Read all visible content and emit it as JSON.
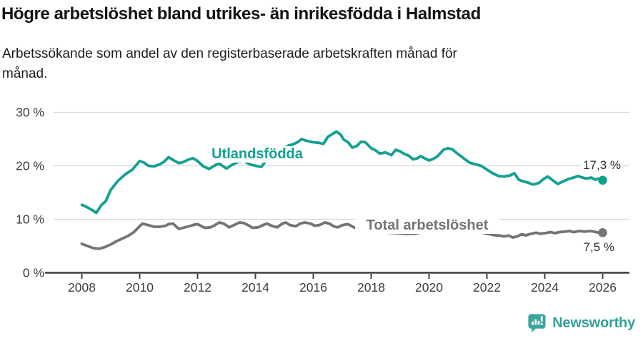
{
  "header": {
    "title": "Högre arbetslöshet bland utrikes- än inrikesfödda i Halmstad",
    "subtitle_lines": [
      "Arbetssökande som andel av den registerbaserade arbetskraften månad för",
      "månad."
    ]
  },
  "footer": {
    "brand": "Newsworthy",
    "brand_color": "#35a09a",
    "logo_icon": "bar-chart-speech-bubble-icon"
  },
  "chart_data": {
    "type": "line",
    "title": "Högre arbetslöshet bland utrikes- än inrikesfödda i Halmstad",
    "subtitle": "Arbetssökande som andel av den registerbaserade arbetskraften månad för månad.",
    "xlabel": "",
    "ylabel": "",
    "ylim": [
      0,
      30
    ],
    "xlim": [
      2007,
      2027
    ],
    "grid": "horizontal",
    "legend_position": "inline-labels",
    "grid_color": "#d7d7d7",
    "axis_color": "#3d3d3d",
    "axis_label_color": "#3c3c3c",
    "y_ticks": [
      {
        "value": 0,
        "label": "0 %"
      },
      {
        "value": 10,
        "label": "10 %"
      },
      {
        "value": 20,
        "label": "20 %"
      },
      {
        "value": 30,
        "label": "30 %"
      }
    ],
    "x_ticks": [
      {
        "value": 2008,
        "label": "2008"
      },
      {
        "value": 2010,
        "label": "2010"
      },
      {
        "value": 2012,
        "label": "2012"
      },
      {
        "value": 2014,
        "label": "2014"
      },
      {
        "value": 2016,
        "label": "2016"
      },
      {
        "value": 2018,
        "label": "2018"
      },
      {
        "value": 2020,
        "label": "2020"
      },
      {
        "value": 2022,
        "label": "2022"
      },
      {
        "value": 2024,
        "label": "2024"
      },
      {
        "value": 2026,
        "label": "2026"
      }
    ],
    "series": [
      {
        "name": "Utlandsfödda",
        "color": "#13A091",
        "end_label": "17,3 %",
        "end_value": 17.3,
        "points": [
          [
            2008.0,
            12.7
          ],
          [
            2008.17,
            12.3
          ],
          [
            2008.33,
            11.8
          ],
          [
            2008.5,
            11.2
          ],
          [
            2008.67,
            12.6
          ],
          [
            2008.83,
            13.4
          ],
          [
            2009.0,
            15.5
          ],
          [
            2009.25,
            17.2
          ],
          [
            2009.5,
            18.4
          ],
          [
            2009.75,
            19.3
          ],
          [
            2010.0,
            20.9
          ],
          [
            2010.15,
            20.6
          ],
          [
            2010.3,
            20.0
          ],
          [
            2010.5,
            19.9
          ],
          [
            2010.7,
            20.3
          ],
          [
            2010.85,
            20.8
          ],
          [
            2011.0,
            21.6
          ],
          [
            2011.15,
            21.1
          ],
          [
            2011.35,
            20.5
          ],
          [
            2011.5,
            20.7
          ],
          [
            2011.7,
            21.2
          ],
          [
            2011.85,
            21.4
          ],
          [
            2012.0,
            20.9
          ],
          [
            2012.2,
            19.9
          ],
          [
            2012.4,
            19.4
          ],
          [
            2012.6,
            20.1
          ],
          [
            2012.75,
            20.4
          ],
          [
            2013.0,
            19.5
          ],
          [
            2013.2,
            20.2
          ],
          [
            2013.4,
            20.7
          ],
          [
            2013.6,
            20.9
          ],
          [
            2013.8,
            20.3
          ],
          [
            2014.0,
            20.0
          ],
          [
            2014.2,
            19.8
          ],
          [
            2014.35,
            20.8
          ],
          [
            2014.5,
            22.0
          ],
          [
            2014.65,
            23.0
          ],
          [
            2014.8,
            23.4
          ],
          [
            2015.0,
            23.3
          ],
          [
            2015.15,
            23.8
          ],
          [
            2015.3,
            24.0
          ],
          [
            2015.45,
            24.4
          ],
          [
            2015.6,
            25.0
          ],
          [
            2015.75,
            24.7
          ],
          [
            2015.9,
            24.5
          ],
          [
            2016.0,
            24.4
          ],
          [
            2016.2,
            24.3
          ],
          [
            2016.35,
            24.1
          ],
          [
            2016.5,
            25.4
          ],
          [
            2016.65,
            25.9
          ],
          [
            2016.8,
            26.4
          ],
          [
            2016.95,
            25.8
          ],
          [
            2017.05,
            24.9
          ],
          [
            2017.2,
            24.4
          ],
          [
            2017.35,
            23.4
          ],
          [
            2017.5,
            23.7
          ],
          [
            2017.65,
            24.5
          ],
          [
            2017.8,
            24.4
          ],
          [
            2018.0,
            23.3
          ],
          [
            2018.15,
            22.9
          ],
          [
            2018.3,
            22.3
          ],
          [
            2018.5,
            22.5
          ],
          [
            2018.7,
            22.0
          ],
          [
            2018.85,
            23.0
          ],
          [
            2019.0,
            22.7
          ],
          [
            2019.15,
            22.2
          ],
          [
            2019.3,
            21.9
          ],
          [
            2019.45,
            21.2
          ],
          [
            2019.6,
            21.4
          ],
          [
            2019.7,
            21.8
          ],
          [
            2019.85,
            21.4
          ],
          [
            2020.0,
            21.0
          ],
          [
            2020.15,
            21.3
          ],
          [
            2020.3,
            21.8
          ],
          [
            2020.5,
            23.0
          ],
          [
            2020.65,
            23.3
          ],
          [
            2020.8,
            23.1
          ],
          [
            2021.0,
            22.2
          ],
          [
            2021.2,
            21.4
          ],
          [
            2021.4,
            20.6
          ],
          [
            2021.6,
            20.3
          ],
          [
            2021.8,
            20.0
          ],
          [
            2022.0,
            19.3
          ],
          [
            2022.2,
            18.6
          ],
          [
            2022.4,
            18.1
          ],
          [
            2022.6,
            18.0
          ],
          [
            2022.8,
            18.2
          ],
          [
            2022.95,
            18.6
          ],
          [
            2023.1,
            17.4
          ],
          [
            2023.25,
            17.1
          ],
          [
            2023.4,
            16.9
          ],
          [
            2023.6,
            16.5
          ],
          [
            2023.8,
            16.8
          ],
          [
            2023.95,
            17.5
          ],
          [
            2024.1,
            18.0
          ],
          [
            2024.25,
            17.4
          ],
          [
            2024.45,
            16.6
          ],
          [
            2024.6,
            17.0
          ],
          [
            2024.8,
            17.5
          ],
          [
            2025.0,
            17.8
          ],
          [
            2025.15,
            18.1
          ],
          [
            2025.3,
            17.8
          ],
          [
            2025.45,
            17.6
          ],
          [
            2025.6,
            17.8
          ],
          [
            2025.75,
            17.4
          ],
          [
            2025.85,
            17.6
          ],
          [
            2026.0,
            17.3
          ]
        ]
      },
      {
        "name": "Total arbetslöshet",
        "color": "#737379",
        "end_label": "7,5 %",
        "end_value": 7.5,
        "points": [
          [
            2008.0,
            5.4
          ],
          [
            2008.2,
            5.0
          ],
          [
            2008.4,
            4.6
          ],
          [
            2008.6,
            4.5
          ],
          [
            2008.8,
            4.8
          ],
          [
            2009.0,
            5.3
          ],
          [
            2009.2,
            5.9
          ],
          [
            2009.4,
            6.4
          ],
          [
            2009.6,
            6.9
          ],
          [
            2009.8,
            7.6
          ],
          [
            2010.0,
            8.7
          ],
          [
            2010.1,
            9.2
          ],
          [
            2010.3,
            8.9
          ],
          [
            2010.5,
            8.6
          ],
          [
            2010.7,
            8.6
          ],
          [
            2010.9,
            8.8
          ],
          [
            2011.0,
            9.1
          ],
          [
            2011.15,
            9.2
          ],
          [
            2011.35,
            8.2
          ],
          [
            2011.5,
            8.4
          ],
          [
            2011.7,
            8.7
          ],
          [
            2011.9,
            9.0
          ],
          [
            2012.0,
            9.1
          ],
          [
            2012.25,
            8.4
          ],
          [
            2012.45,
            8.5
          ],
          [
            2012.6,
            8.9
          ],
          [
            2012.75,
            9.4
          ],
          [
            2012.9,
            9.2
          ],
          [
            2013.1,
            8.5
          ],
          [
            2013.25,
            8.9
          ],
          [
            2013.45,
            9.4
          ],
          [
            2013.6,
            9.3
          ],
          [
            2013.75,
            8.9
          ],
          [
            2013.9,
            8.4
          ],
          [
            2014.1,
            8.5
          ],
          [
            2014.25,
            8.9
          ],
          [
            2014.4,
            9.2
          ],
          [
            2014.55,
            8.8
          ],
          [
            2014.75,
            8.5
          ],
          [
            2014.9,
            9.1
          ],
          [
            2015.05,
            9.4
          ],
          [
            2015.2,
            8.9
          ],
          [
            2015.4,
            8.7
          ],
          [
            2015.55,
            9.2
          ],
          [
            2015.7,
            9.4
          ],
          [
            2015.9,
            9.2
          ],
          [
            2016.05,
            8.8
          ],
          [
            2016.2,
            8.9
          ],
          [
            2016.4,
            9.4
          ],
          [
            2016.55,
            9.2
          ],
          [
            2016.7,
            8.7
          ],
          [
            2016.85,
            8.5
          ],
          [
            2017.0,
            8.9
          ],
          [
            2017.2,
            9.1
          ],
          [
            2017.4,
            8.5
          ],
          [
            2017.6,
            8.2
          ],
          [
            2017.8,
            8.0
          ],
          [
            2018.0,
            7.9
          ],
          [
            2018.3,
            7.7
          ],
          [
            2018.6,
            7.5
          ],
          [
            2018.9,
            7.4
          ],
          [
            2019.2,
            7.3
          ],
          [
            2019.5,
            7.3
          ],
          [
            2019.8,
            7.6
          ],
          [
            2020.0,
            8.2
          ],
          [
            2020.2,
            9.3
          ],
          [
            2020.4,
            9.9
          ],
          [
            2020.6,
            9.7
          ],
          [
            2020.8,
            9.4
          ],
          [
            2021.0,
            9.0
          ],
          [
            2021.3,
            8.4
          ],
          [
            2021.6,
            7.9
          ],
          [
            2021.9,
            7.4
          ],
          [
            2022.1,
            7.2
          ],
          [
            2022.3,
            7.0
          ],
          [
            2022.45,
            6.95
          ],
          [
            2022.6,
            6.8
          ],
          [
            2022.75,
            6.95
          ],
          [
            2022.9,
            6.6
          ],
          [
            2023.05,
            6.8
          ],
          [
            2023.2,
            7.2
          ],
          [
            2023.35,
            7.0
          ],
          [
            2023.5,
            7.25
          ],
          [
            2023.7,
            7.5
          ],
          [
            2023.85,
            7.3
          ],
          [
            2024.0,
            7.4
          ],
          [
            2024.2,
            7.6
          ],
          [
            2024.35,
            7.4
          ],
          [
            2024.5,
            7.6
          ],
          [
            2024.7,
            7.7
          ],
          [
            2024.85,
            7.8
          ],
          [
            2025.0,
            7.6
          ],
          [
            2025.2,
            7.8
          ],
          [
            2025.4,
            7.7
          ],
          [
            2025.55,
            7.8
          ],
          [
            2025.7,
            7.7
          ],
          [
            2025.85,
            7.5
          ],
          [
            2026.0,
            7.5
          ]
        ]
      }
    ]
  }
}
